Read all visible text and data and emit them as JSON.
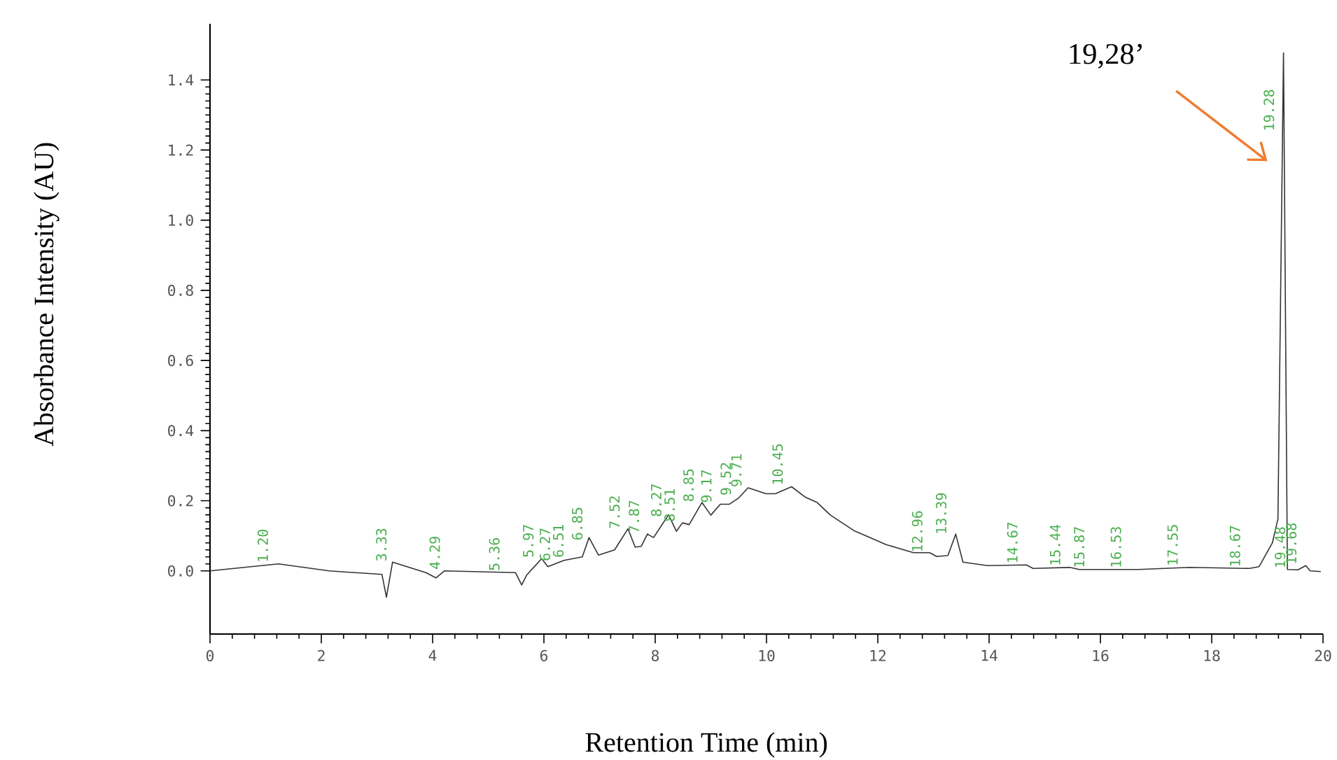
{
  "chart_data": {
    "type": "line",
    "xlabel": "Retention Time (min)",
    "ylabel": "Absorbance Intensity (AU)",
    "xlim": [
      0,
      20
    ],
    "ylim": [
      -0.18,
      1.56
    ],
    "xticks": [
      0,
      2,
      4,
      6,
      8,
      10,
      12,
      14,
      16,
      18,
      20
    ],
    "yticks": [
      {
        "value": 0,
        "label": "0.0"
      },
      0.2,
      0.4,
      0.6,
      0.8,
      {
        "value": 1,
        "label": "1.0"
      },
      1.2,
      1.4
    ],
    "x": [
      0,
      1.23,
      2.14,
      3.09,
      3.17,
      3.28,
      3.54,
      3.88,
      4.06,
      4.21,
      5.49,
      5.6,
      5.69,
      5.96,
      6.07,
      6.36,
      6.69,
      6.81,
      6.98,
      7.27,
      7.51,
      7.64,
      7.75,
      7.86,
      7.97,
      8.24,
      8.38,
      8.49,
      8.61,
      8.84,
      9.0,
      9.17,
      9.33,
      9.5,
      9.67,
      9.99,
      10.16,
      10.45,
      10.7,
      10.91,
      11.15,
      11.57,
      12.15,
      12.64,
      12.93,
      13.06,
      13.26,
      13.4,
      13.53,
      13.97,
      14.67,
      14.79,
      15.45,
      15.62,
      16.69,
      17.6,
      18.68,
      18.85,
      19.09,
      19.19,
      19.29,
      19.36,
      19.55,
      19.69,
      19.77,
      19.96
    ],
    "series": [
      {
        "color": "#333333",
        "values": [
          0.0,
          0.02,
          0.0,
          -0.01,
          -0.075,
          0.025,
          0.012,
          -0.005,
          -0.02,
          0.0,
          -0.005,
          -0.04,
          -0.012,
          0.035,
          0.012,
          0.03,
          0.04,
          0.095,
          0.045,
          0.06,
          0.12,
          0.068,
          0.07,
          0.105,
          0.095,
          0.16,
          0.113,
          0.137,
          0.132,
          0.195,
          0.159,
          0.19,
          0.19,
          0.208,
          0.237,
          0.22,
          0.22,
          0.24,
          0.21,
          0.195,
          0.159,
          0.115,
          0.075,
          0.052,
          0.052,
          0.041,
          0.044,
          0.105,
          0.025,
          0.015,
          0.017,
          0.007,
          0.01,
          0.004,
          0.004,
          0.01,
          0.007,
          0.012,
          0.08,
          0.148,
          1.477,
          0.004,
          0.003,
          0.015,
          0.0,
          -0.002
        ]
      }
    ],
    "annotations": [
      "19,28’",
      {
        "text": "1.20",
        "x": 1.2,
        "y": 0.02
      },
      {
        "text": "3.33",
        "x": 3.33,
        "y": 0.023
      },
      {
        "text": "4.29",
        "x": 4.29,
        "y": 0.0
      },
      {
        "text": "5.36",
        "x": 5.36,
        "y": -0.004
      },
      {
        "text": "5.97",
        "x": 5.97,
        "y": 0.034
      },
      {
        "text": "6.27",
        "x": 6.27,
        "y": 0.024
      },
      {
        "text": "6.51",
        "x": 6.51,
        "y": 0.034
      },
      {
        "text": "6.85",
        "x": 6.85,
        "y": 0.083
      },
      {
        "text": "7.52",
        "x": 7.52,
        "y": 0.116
      },
      {
        "text": "7.87",
        "x": 7.87,
        "y": 0.103
      },
      {
        "text": "8.27",
        "x": 8.27,
        "y": 0.15
      },
      {
        "text": "8.51",
        "x": 8.51,
        "y": 0.136
      },
      {
        "text": "8.85",
        "x": 8.85,
        "y": 0.193
      },
      {
        "text": "9.17",
        "x": 9.17,
        "y": 0.19
      },
      {
        "text": "9.52",
        "x": 9.52,
        "y": 0.211
      },
      {
        "text": "9.71",
        "x": 9.71,
        "y": 0.235
      },
      {
        "text": "10.45",
        "x": 10.45,
        "y": 0.24
      },
      {
        "text": "12.96",
        "x": 12.96,
        "y": 0.049
      },
      {
        "text": "13.39",
        "x": 13.39,
        "y": 0.1
      },
      {
        "text": "14.67",
        "x": 14.67,
        "y": 0.017
      },
      {
        "text": "15.44",
        "x": 15.44,
        "y": 0.01
      },
      {
        "text": "15.87",
        "x": 15.87,
        "y": 0.004
      },
      {
        "text": "16.53",
        "x": 16.53,
        "y": 0.004
      },
      {
        "text": "17.55",
        "x": 17.55,
        "y": 0.01
      },
      {
        "text": "18.67",
        "x": 18.67,
        "y": 0.007
      },
      {
        "text": "19.28",
        "x": 19.28,
        "y": 1.25
      },
      {
        "text": "19.48",
        "x": 19.48,
        "y": 0.003
      },
      {
        "text": "19.68",
        "x": 19.68,
        "y": 0.014
      }
    ]
  }
}
